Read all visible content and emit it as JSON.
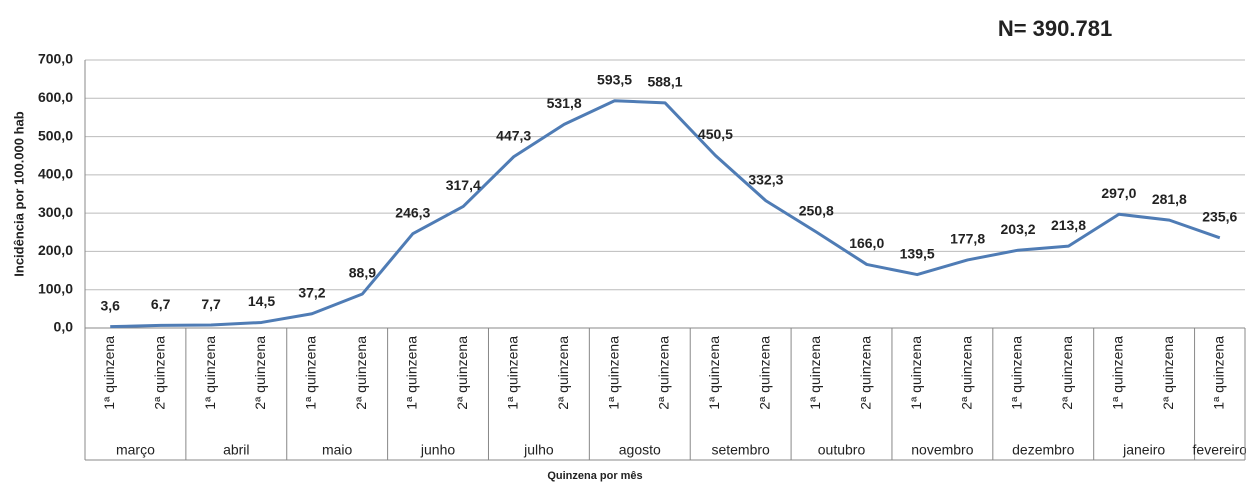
{
  "chart_data": {
    "type": "line",
    "annotation": "N= 390.781",
    "y_label": "Incidência por 100.000 hab",
    "x_label": "Quinzena por mês",
    "groups": [
      {
        "name": "março",
        "categories": [
          "1ª quinzena",
          "2ª quinzena"
        ]
      },
      {
        "name": "abril",
        "categories": [
          "1ª quinzena",
          "2ª quinzena"
        ]
      },
      {
        "name": "maio",
        "categories": [
          "1ª quinzena",
          "2ª quinzena"
        ]
      },
      {
        "name": "junho",
        "categories": [
          "1ª quinzena",
          "2ª quinzena"
        ]
      },
      {
        "name": "julho",
        "categories": [
          "1ª quinzena",
          "2ª quinzena"
        ]
      },
      {
        "name": "agosto",
        "categories": [
          "1ª quinzena",
          "2ª quinzena"
        ]
      },
      {
        "name": "setembro",
        "categories": [
          "1ª quinzena",
          "2ª quinzena"
        ]
      },
      {
        "name": "outubro",
        "categories": [
          "1ª quinzena",
          "2ª quinzena"
        ]
      },
      {
        "name": "novembro",
        "categories": [
          "1ª quinzena",
          "2ª quinzena"
        ]
      },
      {
        "name": "dezembro",
        "categories": [
          "1ª quinzena",
          "2ª quinzena"
        ]
      },
      {
        "name": "janeiro",
        "categories": [
          "1ª quinzena",
          "2ª quinzena"
        ]
      },
      {
        "name": "fevereiro",
        "categories": [
          "1ª quinzena"
        ]
      }
    ],
    "color": "#4f7cb5",
    "values": [
      3.6,
      6.7,
      7.7,
      14.5,
      37.2,
      88.9,
      246.3,
      317.4,
      447.3,
      531.8,
      593.5,
      588.1,
      450.5,
      332.3,
      250.8,
      166.0,
      139.5,
      177.8,
      203.2,
      213.8,
      297.0,
      281.8,
      235.6
    ],
    "value_labels": [
      "3,6",
      "6,7",
      "7,7",
      "14,5",
      "37,2",
      "88,9",
      "246,3",
      "317,4",
      "447,3",
      "531,8",
      "593,5",
      "588,1",
      "450,5",
      "332,3",
      "250,8",
      "166,0",
      "139,5",
      "177,8",
      "203,2",
      "213,8",
      "297,0",
      "281,8",
      "235,6"
    ],
    "ylim": [
      0,
      700
    ],
    "yticks": [
      {
        "value": 0,
        "label": "0,0"
      },
      {
        "value": 100,
        "label": "100,0"
      },
      {
        "value": 200,
        "label": "200,0"
      },
      {
        "value": 300,
        "label": "300,0"
      },
      {
        "value": 400,
        "label": "400,0"
      },
      {
        "value": 500,
        "label": "500,0"
      },
      {
        "value": 600,
        "label": "600,0"
      },
      {
        "value": 700,
        "label": "700,0"
      }
    ],
    "grid": true
  }
}
